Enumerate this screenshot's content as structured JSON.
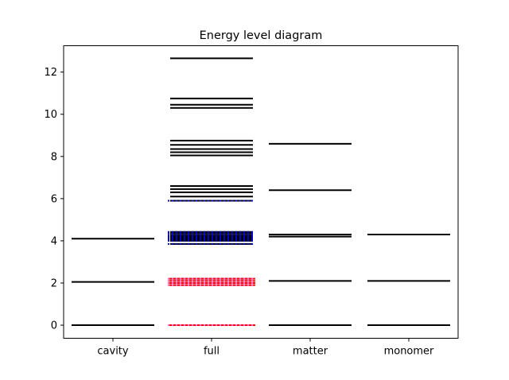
{
  "chart_data": {
    "type": "energy-level",
    "title": "Energy level diagram",
    "xlabel": "",
    "ylabel": "",
    "categories": [
      "cavity",
      "full",
      "matter",
      "monomer"
    ],
    "ylim": [
      -0.62,
      13.25
    ],
    "yticks": [
      0,
      2,
      4,
      6,
      8,
      10,
      12
    ],
    "grid": false,
    "levels": {
      "cavity": [
        0,
        2.05,
        4.1
      ],
      "full": [
        0,
        1.9,
        2.0,
        2.1,
        2.2,
        3.85,
        4.0,
        4.07,
        4.13,
        4.2,
        4.27,
        4.35,
        4.42,
        5.9,
        6.1,
        6.3,
        6.45,
        6.6,
        8.05,
        8.2,
        8.35,
        8.55,
        8.75,
        10.3,
        10.45,
        10.75,
        12.65
      ],
      "matter": [
        0,
        2.1,
        4.2,
        4.3,
        6.4,
        8.6
      ],
      "monomer": [
        0,
        2.1,
        4.3
      ]
    },
    "overlays": [
      {
        "category": "full",
        "color": "#ff0000",
        "style": "solid",
        "levels": [
          0,
          1.9,
          2.0,
          2.1,
          2.2
        ]
      },
      {
        "category": "full",
        "color": "#ff66cc",
        "style": "dotted",
        "levels": [
          0,
          1.9,
          2.0,
          2.1,
          2.2
        ]
      },
      {
        "category": "full",
        "color": "#0000cc",
        "style": "dotted",
        "levels": [
          3.85,
          4.0,
          4.07,
          4.13,
          4.2,
          4.27,
          4.35,
          4.42,
          5.9
        ]
      }
    ]
  }
}
